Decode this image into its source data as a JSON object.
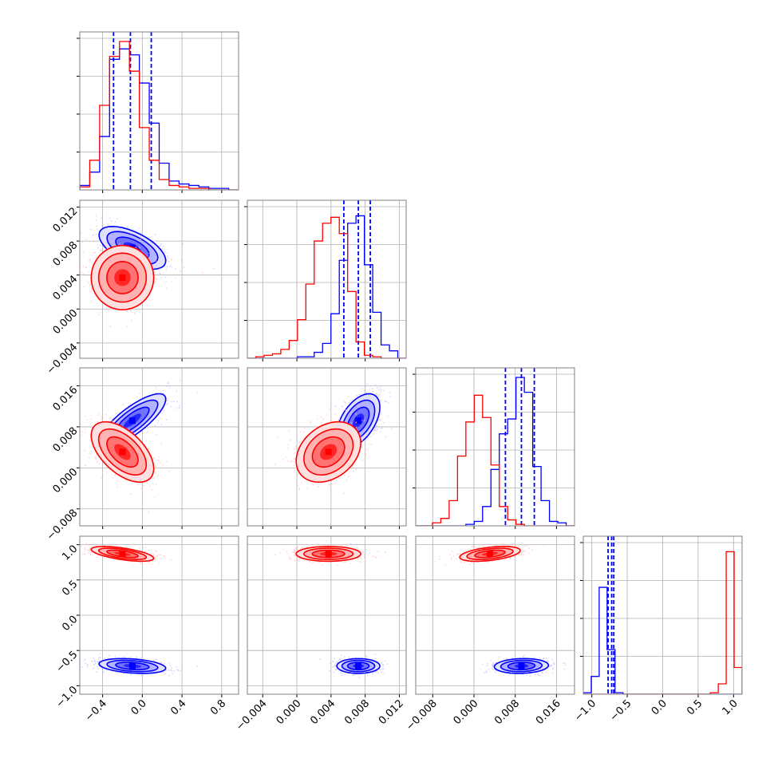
{
  "chart_data": {
    "type": "corner",
    "colors": {
      "series_a": "#0000ff",
      "series_b": "#ff0000",
      "grid": "#b0b0b0",
      "frame": "#808080"
    },
    "params": [
      {
        "id": "p0",
        "range": [
          -0.63,
          0.97
        ],
        "ticks": [
          -0.4,
          0.0,
          0.4,
          0.8
        ],
        "tick_labels": [
          "−0.4",
          "0.0",
          "0.4",
          "0.8"
        ]
      },
      {
        "id": "p1",
        "range": [
          -0.0058,
          0.0128
        ],
        "ticks": [
          -0.004,
          0.0,
          0.004,
          0.008,
          0.012
        ],
        "tick_labels": [
          "−0.004",
          "0.000",
          "0.004",
          "0.008",
          "0.012"
        ]
      },
      {
        "id": "p2",
        "range": [
          -0.0113,
          0.0195
        ],
        "ticks": [
          -0.008,
          0.0,
          0.008,
          0.016
        ],
        "tick_labels": [
          "−0.008",
          "0.000",
          "0.008",
          "0.016"
        ]
      },
      {
        "id": "p3",
        "range": [
          -1.12,
          1.12
        ],
        "ticks": [
          -1.0,
          -0.5,
          0.0,
          0.5,
          1.0
        ],
        "tick_labels": [
          "−1.0",
          "−0.5",
          "0.0",
          "0.5",
          "1.0"
        ]
      }
    ],
    "series": [
      {
        "color": "#0000ff",
        "mean": [
          -0.1,
          0.0072,
          0.0092,
          -0.72
        ],
        "std": [
          0.16,
          0.0012,
          0.0025,
          0.05
        ],
        "corr": [
          [
            0,
            -0.6,
            0.8,
            -0.3
          ],
          [
            0,
            0,
            0.5,
            0.0
          ],
          [
            0,
            0,
            0,
            0.1
          ]
        ],
        "quantiles": [
          [
            -0.29,
            -0.12,
            0.09
          ],
          [
            0.0055,
            0.0072,
            0.0086
          ],
          [
            0.0061,
            0.0092,
            0.0117
          ],
          [
            -0.77,
            -0.72,
            -0.69
          ]
        ],
        "hist": [
          [
            3,
            12,
            36,
            88,
            95,
            91,
            72,
            45,
            18,
            6,
            4,
            3,
            2,
            1,
            1,
            0
          ],
          [
            0,
            0,
            0,
            0,
            0,
            0,
            1,
            1,
            4,
            10,
            30,
            66,
            91,
            96,
            63,
            31,
            9,
            5,
            0
          ],
          [
            0,
            0,
            0,
            0,
            0,
            0,
            1,
            3,
            13,
            38,
            62,
            72,
            100,
            90,
            40,
            17,
            3,
            2,
            0
          ],
          [
            1,
            12,
            72,
            30,
            1,
            0,
            0,
            0,
            0,
            0,
            0,
            0,
            0,
            0,
            0,
            0,
            0,
            0,
            0,
            0
          ]
        ]
      },
      {
        "color": "#ff0000",
        "mean": [
          -0.2,
          0.0037,
          0.0031,
          0.87
        ],
        "std": [
          0.15,
          0.0018,
          0.0028,
          0.05
        ],
        "corr": [
          [
            0,
            0.0,
            -0.55,
            -0.6
          ],
          [
            0,
            0,
            0.3,
            0.0
          ],
          [
            0,
            0,
            0,
            0.45
          ]
        ],
        "quantiles": [],
        "hist": [
          [
            2,
            20,
            57,
            90,
            100,
            80,
            42,
            20,
            7,
            3,
            2,
            1,
            1,
            0,
            0,
            0
          ],
          [
            0,
            1,
            2,
            3,
            6,
            12,
            26,
            50,
            79,
            91,
            95,
            84,
            45,
            11,
            2,
            1,
            0,
            0,
            0
          ],
          [
            0,
            0,
            2,
            5,
            17,
            47,
            70,
            88,
            73,
            41,
            13,
            4,
            1,
            0,
            0,
            0,
            0,
            0,
            0
          ],
          [
            0,
            0,
            0,
            0,
            0,
            0,
            0,
            0,
            0,
            0,
            0,
            0,
            0,
            0,
            0,
            0,
            1,
            7,
            96,
            18
          ]
        ]
      }
    ]
  }
}
